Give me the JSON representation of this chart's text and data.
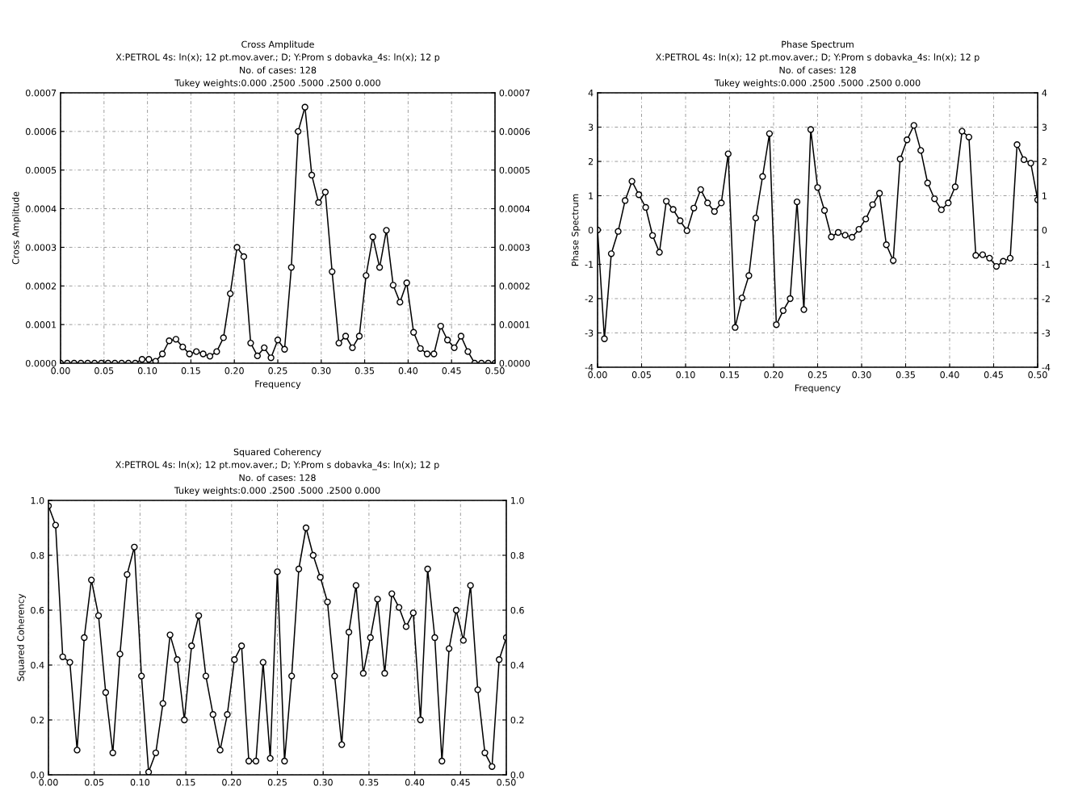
{
  "chart_data": [
    {
      "type": "line",
      "title": "Cross Amplitude",
      "subtitle": "X:PETROL 4s: ln(x); 12 pt.mov.aver.; D; Y:Prom s dobavka_4s: ln(x); 12 p\nNo. of cases: 128\nTukey weights:0.000 .2500 .5000 .2500 0.000",
      "xlabel": "Frequency",
      "ylabel": "Cross Amplitude",
      "x": [
        0.0,
        0.0078,
        0.0156,
        0.0234,
        0.0313,
        0.0391,
        0.0469,
        0.0547,
        0.0625,
        0.0703,
        0.0781,
        0.0859,
        0.0938,
        0.1016,
        0.1094,
        0.1172,
        0.125,
        0.1328,
        0.1406,
        0.1484,
        0.1563,
        0.1641,
        0.1719,
        0.1797,
        0.1875,
        0.1953,
        0.2031,
        0.2109,
        0.2188,
        0.2266,
        0.2344,
        0.2422,
        0.25,
        0.2578,
        0.2656,
        0.2734,
        0.2813,
        0.2891,
        0.2969,
        0.3047,
        0.3125,
        0.3203,
        0.3281,
        0.3359,
        0.3438,
        0.3516,
        0.3594,
        0.3672,
        0.375,
        0.3828,
        0.3906,
        0.3984,
        0.4063,
        0.4141,
        0.4219,
        0.4297,
        0.4375,
        0.4453,
        0.4531,
        0.4609,
        0.4688,
        0.4766,
        0.4844,
        0.4922,
        0.5
      ],
      "series": [
        {
          "color": "#000000",
          "values": [
            0,
            0,
            0,
            0,
            0,
            0,
            0,
            0,
            0,
            0,
            0,
            0,
            1e-05,
            1e-05,
            5e-06,
            2.4e-05,
            5.8e-05,
            6.2e-05,
            4.2e-05,
            2.4e-05,
            3e-05,
            2.4e-05,
            1.8e-05,
            3e-05,
            6.6e-05,
            0.00018,
            0.0003,
            0.000276,
            5.2e-05,
            1.9e-05,
            4e-05,
            1.4e-05,
            6e-05,
            3.6e-05,
            0.000248,
            0.0006,
            0.000663,
            0.000487,
            0.000416,
            0.000443,
            0.000237,
            5.2e-05,
            7e-05,
            4e-05,
            7e-05,
            0.000227,
            0.000327,
            0.000248,
            0.000344,
            0.000202,
            0.000158,
            0.000208,
            8e-05,
            3.8e-05,
            2.4e-05,
            2.4e-05,
            9.6e-05,
            6e-05,
            4e-05,
            7e-05,
            3e-05,
            0,
            0,
            0,
            0
          ]
        }
      ],
      "xlim": [
        0,
        0.5
      ],
      "xticks": [
        {
          "value": 0,
          "label": "0.00"
        },
        {
          "value": 0.05,
          "label": "0.05"
        },
        {
          "value": 0.1,
          "label": "0.10"
        },
        {
          "value": 0.15,
          "label": "0.15"
        },
        {
          "value": 0.2,
          "label": "0.20"
        },
        {
          "value": 0.25,
          "label": "0.25"
        },
        {
          "value": 0.3,
          "label": "0.30"
        },
        {
          "value": 0.35,
          "label": "0.35"
        },
        {
          "value": 0.4,
          "label": "0.40"
        },
        {
          "value": 0.45,
          "label": "0.45"
        },
        {
          "value": 0.5,
          "label": "0.50"
        }
      ],
      "ylim": [
        0,
        0.0007
      ],
      "yticks": [
        {
          "value": 0,
          "label": "0.0000"
        },
        {
          "value": 0.0001,
          "label": "0.0001"
        },
        {
          "value": 0.0002,
          "label": "0.0002"
        },
        {
          "value": 0.0003,
          "label": "0.0003"
        },
        {
          "value": 0.0004,
          "label": "0.0004"
        },
        {
          "value": 0.0005,
          "label": "0.0005"
        },
        {
          "value": 0.0006,
          "label": "0.0006"
        },
        {
          "value": 0.0007,
          "label": "0.0007"
        }
      ],
      "y2lim": [
        0,
        0.0007
      ],
      "y2ticks": [
        {
          "value": 0,
          "label": "0.0000"
        },
        {
          "value": 0.0001,
          "label": "0.0001"
        },
        {
          "value": 0.0002,
          "label": "0.0002"
        },
        {
          "value": 0.0003,
          "label": "0.0003"
        },
        {
          "value": 0.0004,
          "label": "0.0004"
        },
        {
          "value": 0.0005,
          "label": "0.0005"
        },
        {
          "value": 0.0006,
          "label": "0.0006"
        },
        {
          "value": 0.0007,
          "label": "0.0007"
        }
      ],
      "grid": true,
      "marker": "circle",
      "line_style": "solid"
    },
    {
      "type": "line",
      "title": "Phase Spectrum",
      "subtitle": "X:PETROL 4s: ln(x); 12 pt.mov.aver.; D; Y:Prom s dobavka_4s: ln(x); 12 p\nNo. of cases: 128\nTukey weights:0.000 .2500 .5000 .2500 0.000",
      "xlabel": "Frequency",
      "ylabel": "Phase Spectrum",
      "x": [
        0.0,
        0.0078,
        0.0156,
        0.0234,
        0.0313,
        0.0391,
        0.0469,
        0.0547,
        0.0625,
        0.0703,
        0.0781,
        0.0859,
        0.0938,
        0.1016,
        0.1094,
        0.1172,
        0.125,
        0.1328,
        0.1406,
        0.1484,
        0.1563,
        0.1641,
        0.1719,
        0.1797,
        0.1875,
        0.1953,
        0.2031,
        0.2109,
        0.2188,
        0.2266,
        0.2344,
        0.2422,
        0.25,
        0.2578,
        0.2656,
        0.2734,
        0.2813,
        0.2891,
        0.2969,
        0.3047,
        0.3125,
        0.3203,
        0.3281,
        0.3359,
        0.3438,
        0.3516,
        0.3594,
        0.3672,
        0.375,
        0.3828,
        0.3906,
        0.3984,
        0.4063,
        0.4141,
        0.4219,
        0.4297,
        0.4375,
        0.4453,
        0.4531,
        0.4609,
        0.4688,
        0.4766,
        0.4844,
        0.4922,
        0.5
      ],
      "series": [
        {
          "color": "#000000",
          "values": [
            0,
            -3.17,
            -0.69,
            -0.04,
            0.86,
            1.42,
            1.03,
            0.66,
            -0.16,
            -0.65,
            0.84,
            0.6,
            0.27,
            -0.02,
            0.64,
            1.18,
            0.79,
            0.54,
            0.79,
            2.22,
            -2.84,
            -1.98,
            -1.33,
            0.35,
            1.56,
            2.81,
            -2.76,
            -2.35,
            -2.0,
            0.82,
            -2.32,
            2.93,
            1.24,
            0.57,
            -0.2,
            -0.07,
            -0.15,
            -0.21,
            0.02,
            0.32,
            0.74,
            1.07,
            -0.43,
            -0.89,
            2.07,
            2.63,
            3.05,
            2.32,
            1.37,
            0.91,
            0.59,
            0.79,
            1.26,
            2.88,
            2.71,
            -0.74,
            -0.72,
            -0.82,
            -1.06,
            -0.91,
            -0.82,
            2.49,
            2.05,
            1.95,
            0.88
          ]
        }
      ],
      "xlim": [
        0,
        0.5
      ],
      "xticks": [
        {
          "value": 0,
          "label": "0.00"
        },
        {
          "value": 0.05,
          "label": "0.05"
        },
        {
          "value": 0.1,
          "label": "0.10"
        },
        {
          "value": 0.15,
          "label": "0.15"
        },
        {
          "value": 0.2,
          "label": "0.20"
        },
        {
          "value": 0.25,
          "label": "0.25"
        },
        {
          "value": 0.3,
          "label": "0.30"
        },
        {
          "value": 0.35,
          "label": "0.35"
        },
        {
          "value": 0.4,
          "label": "0.40"
        },
        {
          "value": 0.45,
          "label": "0.45"
        },
        {
          "value": 0.5,
          "label": "0.50"
        }
      ],
      "ylim": [
        -4,
        4
      ],
      "yticks": [
        -4,
        -3,
        -2,
        -1,
        0,
        1,
        2,
        3,
        4
      ],
      "y2lim": [
        -4,
        4
      ],
      "y2ticks": [
        -4,
        -3,
        -2,
        -1,
        0,
        1,
        2,
        3,
        4
      ],
      "grid": true,
      "marker": "circle",
      "line_style": "solid"
    },
    {
      "type": "line",
      "title": "Squared Coherency",
      "subtitle": "X:PETROL 4s: ln(x); 12 pt.mov.aver.; D; Y:Prom s dobavka_4s: ln(x); 12 p\nNo. of cases: 128\nTukey weights:0.000 .2500 .5000 .2500 0.000",
      "ylabel": "Squared Coherency",
      "x": [
        0.0,
        0.0078,
        0.0156,
        0.0234,
        0.0313,
        0.0391,
        0.0469,
        0.0547,
        0.0625,
        0.0703,
        0.0781,
        0.0859,
        0.0938,
        0.1016,
        0.1094,
        0.1172,
        0.125,
        0.1328,
        0.1406,
        0.1484,
        0.1563,
        0.1641,
        0.1719,
        0.1797,
        0.1875,
        0.1953,
        0.2031,
        0.2109,
        0.2188,
        0.2266,
        0.2344,
        0.2422,
        0.25,
        0.2578,
        0.2656,
        0.2734,
        0.2813,
        0.2891,
        0.2969,
        0.3047,
        0.3125,
        0.3203,
        0.3281,
        0.3359,
        0.3438,
        0.3516,
        0.3594,
        0.3672,
        0.375,
        0.3828,
        0.3906,
        0.3984,
        0.4063,
        0.4141,
        0.4219,
        0.4297,
        0.4375,
        0.4453,
        0.4531,
        0.4609,
        0.4688,
        0.4766,
        0.4844,
        0.4922,
        0.5
      ],
      "series": [
        {
          "color": "#000000",
          "values": [
            0.98,
            0.91,
            0.43,
            0.41,
            0.09,
            0.5,
            0.71,
            0.58,
            0.3,
            0.08,
            0.44,
            0.73,
            0.83,
            0.36,
            0.01,
            0.08,
            0.26,
            0.51,
            0.42,
            0.2,
            0.47,
            0.58,
            0.36,
            0.22,
            0.09,
            0.22,
            0.42,
            0.47,
            0.05,
            0.05,
            0.41,
            0.06,
            0.74,
            0.05,
            0.36,
            0.75,
            0.9,
            0.8,
            0.72,
            0.63,
            0.36,
            0.11,
            0.52,
            0.69,
            0.37,
            0.5,
            0.64,
            0.37,
            0.66,
            0.61,
            0.54,
            0.59,
            0.2,
            0.75,
            0.5,
            0.05,
            0.46,
            0.6,
            0.49,
            0.69,
            0.31,
            0.08,
            0.03,
            0.42,
            0.5
          ]
        }
      ],
      "xlim": [
        0,
        0.5
      ],
      "xticks": [
        {
          "value": 0,
          "label": "0.00"
        },
        {
          "value": 0.05,
          "label": "0.05"
        },
        {
          "value": 0.1,
          "label": "0.10"
        },
        {
          "value": 0.15,
          "label": "0.15"
        },
        {
          "value": 0.2,
          "label": "0.20"
        },
        {
          "value": 0.25,
          "label": "0.25"
        },
        {
          "value": 0.3,
          "label": "0.30"
        },
        {
          "value": 0.35,
          "label": "0.35"
        },
        {
          "value": 0.4,
          "label": "0.40"
        },
        {
          "value": 0.45,
          "label": "0.45"
        },
        {
          "value": 0.5,
          "label": "0.50"
        }
      ],
      "ylim": [
        0,
        1
      ],
      "yticks": [
        {
          "value": 0,
          "label": "0.0"
        },
        {
          "value": 0.2,
          "label": "0.2"
        },
        {
          "value": 0.4,
          "label": "0.4"
        },
        {
          "value": 0.6,
          "label": "0.6"
        },
        {
          "value": 0.8,
          "label": "0.8"
        },
        {
          "value": 1,
          "label": "1.0"
        }
      ],
      "y2lim": [
        0,
        1
      ],
      "y2ticks": [
        {
          "value": 0,
          "label": "0.0"
        },
        {
          "value": 0.2,
          "label": "0.2"
        },
        {
          "value": 0.4,
          "label": "0.4"
        },
        {
          "value": 0.6,
          "label": "0.6"
        },
        {
          "value": 0.8,
          "label": "0.8"
        },
        {
          "value": 1,
          "label": "1.0"
        }
      ],
      "grid": true,
      "marker": "circle",
      "line_style": "solid"
    }
  ]
}
